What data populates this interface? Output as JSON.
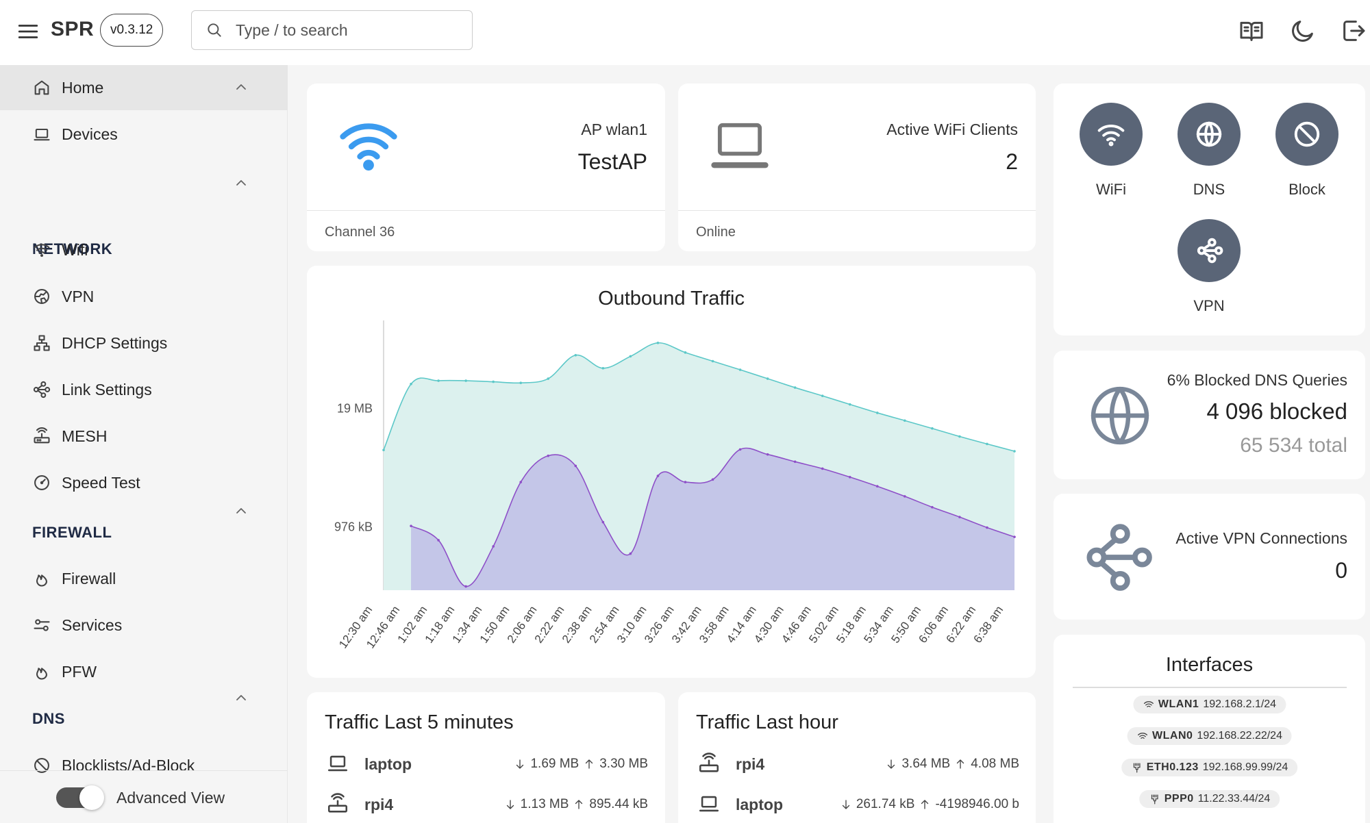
{
  "header": {
    "brand": "SPR",
    "version": "v0.3.12",
    "search_placeholder": "Type / to search",
    "icons": [
      "menu-icon",
      "search-icon",
      "book-icon",
      "moon-icon",
      "logout-icon"
    ]
  },
  "sidebar": {
    "home": "Home",
    "devices": "Devices",
    "network": {
      "title": "NETWORK",
      "items": [
        "Wifi",
        "VPN",
        "DHCP Settings",
        "Link Settings",
        "MESH",
        "Speed Test"
      ]
    },
    "firewall": {
      "title": "FIREWALL",
      "items": [
        "Firewall",
        "Services",
        "PFW"
      ]
    },
    "dns": {
      "title": "DNS",
      "items": [
        "Blocklists/Ad-Block"
      ]
    },
    "advanced_view": "Advanced View",
    "advanced_view_on": true
  },
  "ap_card": {
    "title": "AP wlan1",
    "value": "TestAP",
    "footer": "Channel 36"
  },
  "clients_card": {
    "title": "Active WiFi Clients",
    "value": "2",
    "footer": "Online"
  },
  "quick": {
    "wifi": "WiFi",
    "dns": "DNS",
    "block": "Block",
    "vpn": "VPN"
  },
  "dns_card": {
    "title": "6% Blocked DNS Queries",
    "blocked": "4 096 blocked",
    "total": "65 534 total"
  },
  "vpn_card": {
    "title": "Active VPN Connections",
    "value": "0"
  },
  "interfaces": {
    "title": "Interfaces",
    "items": [
      {
        "name": "WLAN1",
        "addr": "192.168.2.1/24",
        "icon": "wifi-icon"
      },
      {
        "name": "WLAN0",
        "addr": "192.168.22.22/24",
        "icon": "wifi-icon"
      },
      {
        "name": "ETH0.123",
        "addr": "192.168.99.99/24",
        "icon": "ethernet-icon"
      },
      {
        "name": "PPP0",
        "addr": "11.22.33.44/24",
        "icon": "ethernet-icon"
      }
    ]
  },
  "traffic5": {
    "title": "Traffic Last 5 minutes",
    "rows": [
      {
        "name": "laptop",
        "icon": "laptop-icon",
        "down": "1.69 MB",
        "up": "3.30 MB"
      },
      {
        "name": "rpi4",
        "icon": "router-icon",
        "down": "1.13 MB",
        "up": "895.44 kB"
      }
    ]
  },
  "traffic_hour": {
    "title": "Traffic Last hour",
    "rows": [
      {
        "name": "rpi4",
        "icon": "router-icon",
        "down": "3.64 MB",
        "up": "4.08 MB"
      },
      {
        "name": "laptop",
        "icon": "laptop-icon",
        "down": "261.74 kB",
        "up": "-4198946.00 b"
      }
    ]
  },
  "chart_data": {
    "type": "area",
    "title": "Outbound Traffic",
    "scale": "log",
    "y_ticks": [
      {
        "label": "19 MB",
        "bytes": 19000000
      },
      {
        "label": "976 kB",
        "bytes": 976000
      }
    ],
    "categories": [
      "12:30 am",
      "12:46 am",
      "1:02 am",
      "1:18 am",
      "1:34 am",
      "1:50 am",
      "2:06 am",
      "2:22 am",
      "2:38 am",
      "2:54 am",
      "3:10 am",
      "3:26 am",
      "3:42 am",
      "3:58 am",
      "4:14 am",
      "4:30 am",
      "4:46 am",
      "5:02 am",
      "5:18 am",
      "5:34 am",
      "5:50 am",
      "6:06 am",
      "6:22 am",
      "6:38 am"
    ],
    "series": [
      {
        "color": "#5cc8c8",
        "fill": "#dcf1ee",
        "values": [
          6700000,
          35000000,
          38000000,
          38000000,
          37000000,
          36000000,
          40000000,
          72000000,
          52000000,
          70000000,
          98000000,
          77000000,
          62000000,
          50000000,
          40000000,
          32000000,
          26000000,
          21000000,
          17000000,
          14000000,
          11500000,
          9400000,
          7800000,
          6500000
        ]
      },
      {
        "color": "#8e50c8",
        "fill": "#c4c6e8",
        "values": [
          null,
          1000000,
          700000,
          220000,
          600000,
          3000000,
          5800000,
          4500000,
          1100000,
          500000,
          3500000,
          3000000,
          3200000,
          6800000,
          6000000,
          5000000,
          4200000,
          3400000,
          2700000,
          2100000,
          1600000,
          1250000,
          960000,
          760000
        ]
      }
    ]
  }
}
